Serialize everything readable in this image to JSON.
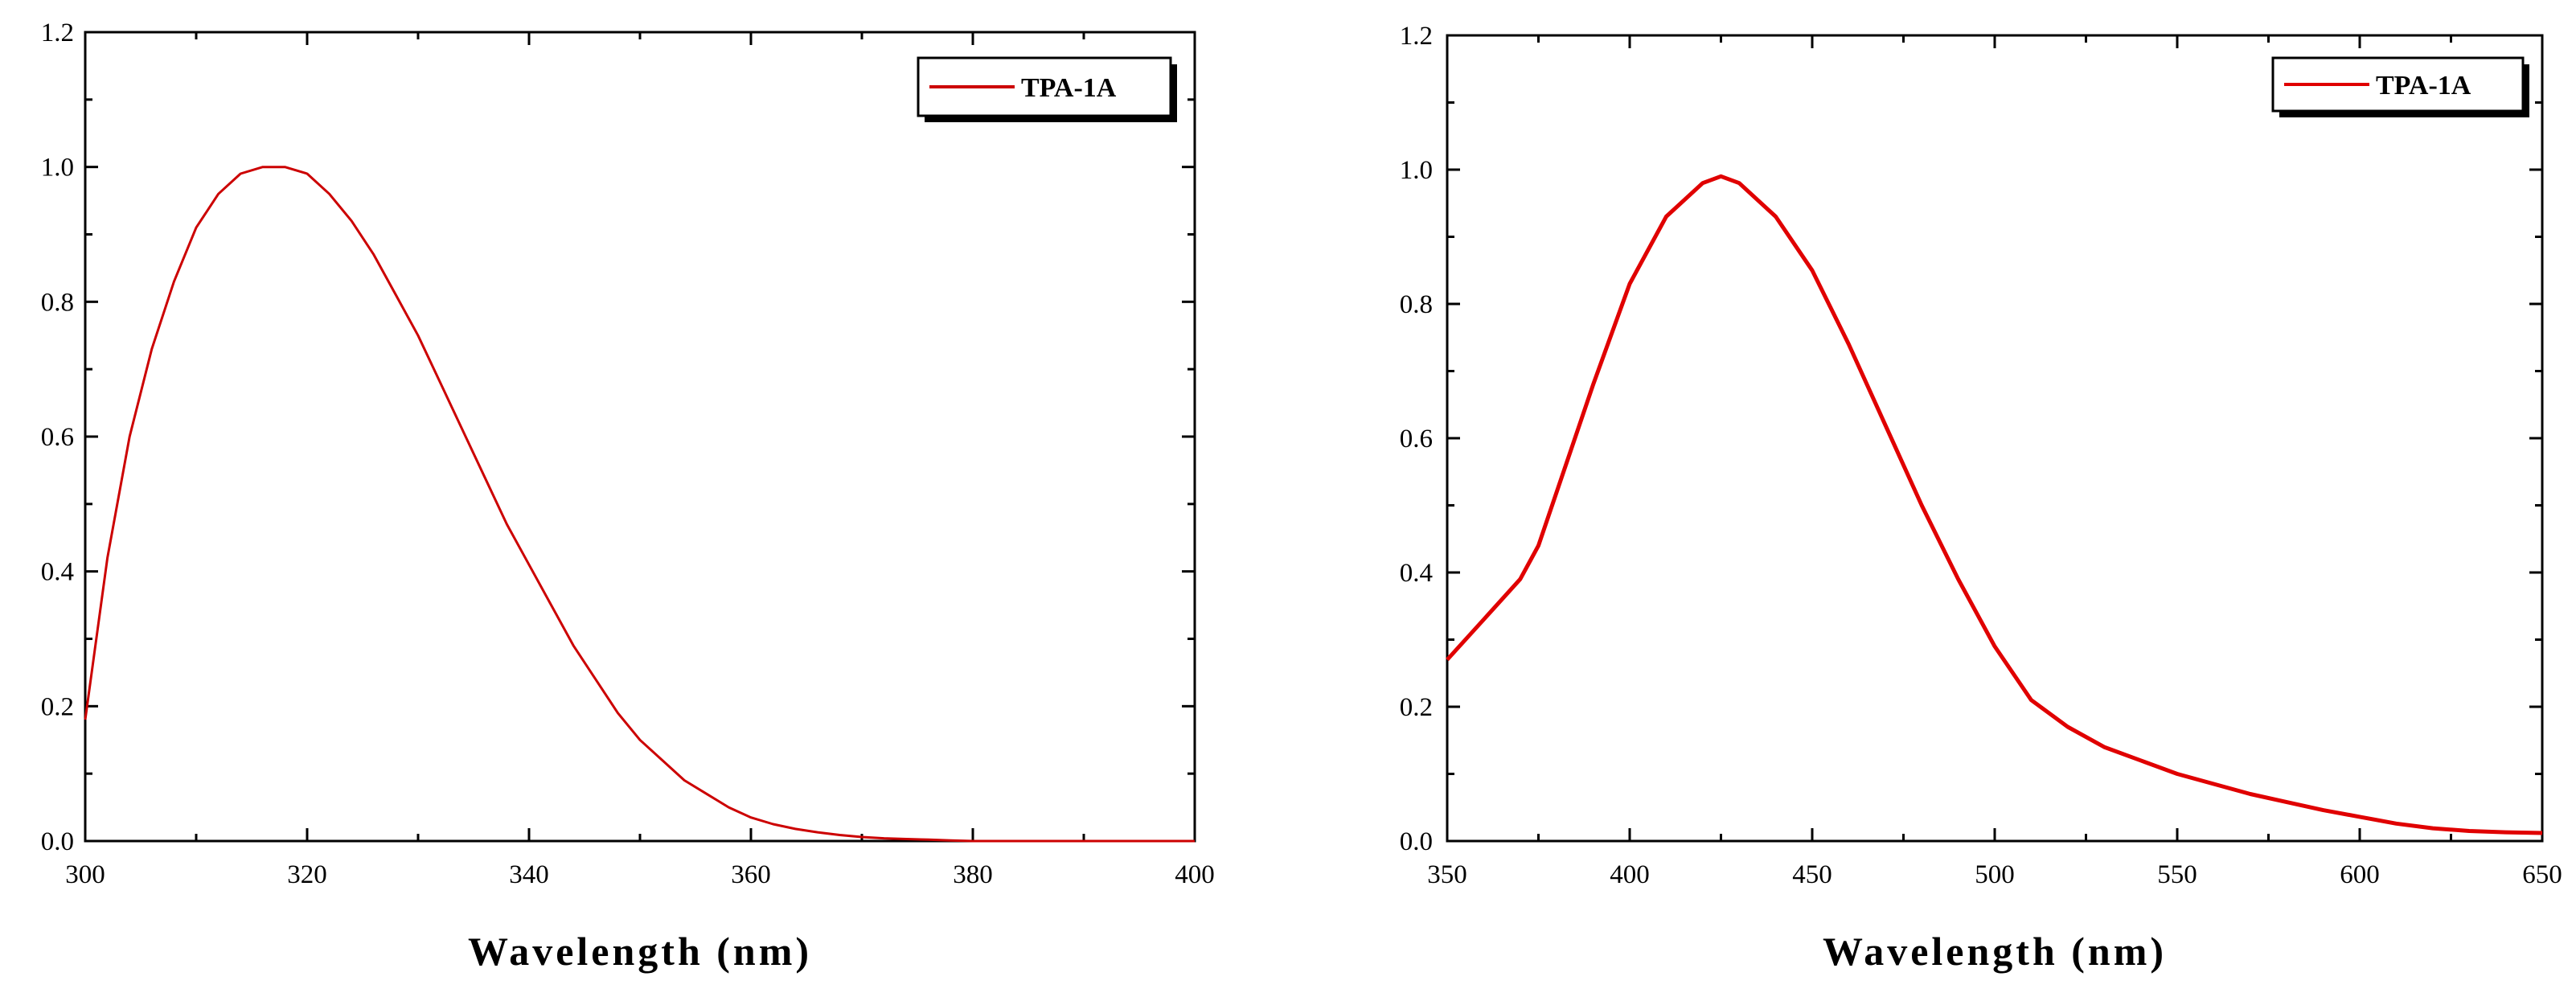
{
  "chart_data": [
    {
      "type": "line",
      "title": "",
      "xlabel": "Wavelength (nm)",
      "ylabel": "",
      "xlim": [
        300,
        400
      ],
      "ylim": [
        0,
        1.2
      ],
      "x_ticks": [
        "300",
        "320",
        "340",
        "360",
        "380",
        "400"
      ],
      "y_ticks": [
        "0.0",
        "0.2",
        "0.4",
        "0.6",
        "0.8",
        "1.0",
        "1.2"
      ],
      "legend_position": "top-right",
      "grid": false,
      "series": [
        {
          "name": "TPA-1A",
          "color": "#cc0000",
          "x": [
            300,
            302,
            304,
            306,
            308,
            310,
            312,
            314,
            316,
            317.5,
            318,
            320,
            322,
            324,
            326,
            328,
            330,
            332,
            334,
            336,
            338,
            340,
            342,
            344,
            346,
            348,
            350,
            352,
            354,
            356,
            358,
            360,
            362,
            364,
            366,
            368,
            370,
            372,
            374,
            376,
            378,
            380,
            385,
            390,
            395,
            400
          ],
          "y": [
            0.18,
            0.42,
            0.6,
            0.73,
            0.83,
            0.91,
            0.96,
            0.99,
            1.0,
            1.0,
            1.0,
            0.99,
            0.96,
            0.92,
            0.87,
            0.81,
            0.75,
            0.68,
            0.61,
            0.54,
            0.47,
            0.41,
            0.35,
            0.29,
            0.24,
            0.19,
            0.15,
            0.12,
            0.09,
            0.07,
            0.05,
            0.035,
            0.025,
            0.018,
            0.013,
            0.009,
            0.006,
            0.004,
            0.003,
            0.002,
            0.001,
            0.0,
            0.0,
            0.0,
            0.0,
            0.0
          ]
        }
      ]
    },
    {
      "type": "line",
      "title": "",
      "xlabel": "Wavelength (nm)",
      "ylabel": "",
      "xlim": [
        350,
        650
      ],
      "ylim": [
        0,
        1.2
      ],
      "x_ticks": [
        "350",
        "400",
        "450",
        "500",
        "550",
        "600",
        "650"
      ],
      "y_ticks": [
        "0.0",
        "0.2",
        "0.4",
        "0.6",
        "0.8",
        "1.0",
        "1.2"
      ],
      "legend_position": "top-right",
      "grid": false,
      "series": [
        {
          "name": "TPA-1A",
          "color": "#e00000",
          "x": [
            350,
            360,
            370,
            375,
            380,
            390,
            400,
            410,
            420,
            425,
            430,
            440,
            450,
            460,
            470,
            480,
            490,
            500,
            510,
            520,
            530,
            540,
            550,
            560,
            570,
            580,
            590,
            600,
            610,
            620,
            630,
            640,
            650
          ],
          "y": [
            0.27,
            0.33,
            0.39,
            0.44,
            0.52,
            0.68,
            0.83,
            0.93,
            0.98,
            0.99,
            0.98,
            0.93,
            0.85,
            0.74,
            0.62,
            0.5,
            0.39,
            0.29,
            0.21,
            0.17,
            0.14,
            0.12,
            0.1,
            0.085,
            0.07,
            0.058,
            0.046,
            0.036,
            0.026,
            0.019,
            0.015,
            0.013,
            0.012
          ]
        }
      ]
    }
  ]
}
